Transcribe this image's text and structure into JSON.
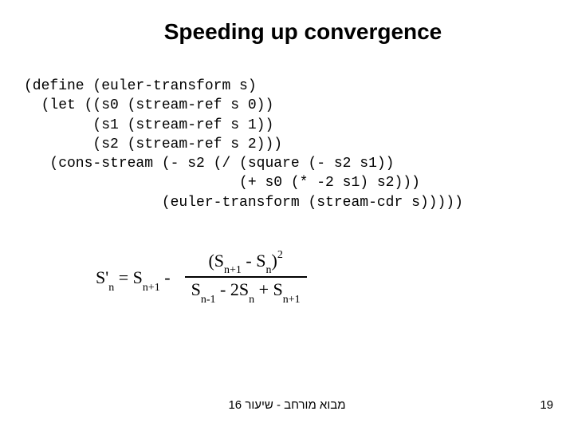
{
  "title": "Speeding up convergence",
  "code": "(define (euler-transform s)\n  (let ((s0 (stream-ref s 0))\n        (s1 (stream-ref s 1))\n        (s2 (stream-ref s 2)))\n   (cons-stream (- s2 (/ (square (- s2 s1))\n                         (+ s0 (* -2 s1) s2)))\n                (euler-transform (stream-cdr s)))))",
  "formula": {
    "lhs_S": "S'",
    "lhs_sub": "n",
    "eq": " =  ",
    "rhs_S": "S",
    "rhs_sub": "n+1",
    "minus": " -",
    "num_open": "(S",
    "num_sub1": "n+1",
    "num_mid": " - S",
    "num_sub2": "n",
    "num_close": ")",
    "num_sup": "2",
    "den_S1": "S",
    "den_sub1": "n-1",
    "den_mid1": " - 2",
    "den_S2": "S",
    "den_sub2": "n",
    "den_mid2": " + S",
    "den_sub3": "n+1"
  },
  "footer_center": "מבוא מורחב - שיעור 16",
  "footer_page": "19"
}
